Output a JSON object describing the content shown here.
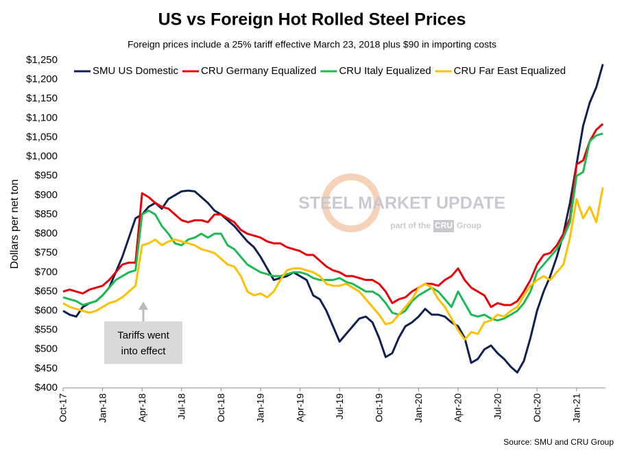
{
  "chart_data": {
    "type": "line",
    "title": "US vs Foreign Hot Rolled Steel Prices",
    "subtitle": "Foreign prices include a 25% tariff effective March 23, 2018 plus $90 in importing costs",
    "y_label": "Dollars per net ton",
    "source": "Source: SMU and CRU Group",
    "annotation": [
      "Tariffs went",
      "into effect"
    ],
    "watermark": [
      "STEEL MARKET UPDATE",
      "part of the",
      "CRU",
      "Group"
    ],
    "categories": [
      "Oct-17",
      null,
      null,
      null,
      null,
      null,
      "Jan-18",
      null,
      null,
      null,
      null,
      null,
      "Apr-18",
      null,
      null,
      null,
      null,
      null,
      "Jul-18",
      null,
      null,
      null,
      null,
      null,
      "Oct-18",
      null,
      null,
      null,
      null,
      null,
      "Jan-19",
      null,
      null,
      null,
      null,
      null,
      "Apr-19",
      null,
      null,
      null,
      null,
      null,
      "Jul-19",
      null,
      null,
      null,
      null,
      null,
      "Oct-19",
      null,
      null,
      null,
      null,
      null,
      "Jan-20",
      null,
      null,
      null,
      null,
      null,
      "Apr-20",
      null,
      null,
      null,
      null,
      null,
      "Jul-20",
      null,
      null,
      null,
      null,
      null,
      "Oct-20",
      null,
      null,
      null,
      null,
      null,
      "Jan-21",
      null,
      null,
      null,
      null
    ],
    "series": [
      {
        "name": "SMU US Domestic",
        "color": "#0f2150",
        "values": [
          600,
          590,
          585,
          610,
          620,
          625,
          640,
          660,
          700,
          740,
          790,
          840,
          850,
          870,
          880,
          865,
          890,
          900,
          910,
          912,
          910,
          895,
          880,
          860,
          850,
          835,
          820,
          800,
          780,
          765,
          740,
          710,
          680,
          685,
          690,
          700,
          690,
          680,
          640,
          630,
          600,
          560,
          520,
          540,
          560,
          580,
          585,
          570,
          530,
          480,
          490,
          530,
          560,
          570,
          585,
          605,
          590,
          590,
          585,
          570,
          560,
          530,
          465,
          475,
          500,
          510,
          490,
          475,
          455,
          440,
          470,
          530,
          600,
          650,
          690,
          740,
          800,
          880,
          980,
          1080,
          1140,
          1180,
          1240
        ]
      },
      {
        "name": "CRU Germany Equalized",
        "color": "#e8000b",
        "values": [
          650,
          655,
          650,
          645,
          655,
          660,
          665,
          680,
          700,
          720,
          725,
          725,
          905,
          895,
          880,
          870,
          865,
          850,
          835,
          830,
          835,
          835,
          830,
          850,
          850,
          840,
          830,
          810,
          800,
          795,
          790,
          780,
          775,
          775,
          765,
          760,
          755,
          745,
          745,
          730,
          715,
          705,
          700,
          690,
          690,
          685,
          680,
          680,
          670,
          650,
          620,
          630,
          635,
          650,
          660,
          670,
          670,
          665,
          680,
          690,
          710,
          680,
          660,
          650,
          640,
          610,
          620,
          615,
          615,
          625,
          650,
          680,
          720,
          745,
          750,
          770,
          800,
          840,
          980,
          990,
          1040,
          1070,
          1085
        ]
      },
      {
        "name": "CRU Italy Equalized",
        "color": "#1db954",
        "values": [
          635,
          630,
          625,
          615,
          620,
          625,
          640,
          660,
          680,
          690,
          700,
          705,
          850,
          860,
          850,
          820,
          800,
          775,
          770,
          785,
          790,
          800,
          790,
          800,
          800,
          770,
          760,
          740,
          720,
          710,
          700,
          695,
          690,
          690,
          695,
          700,
          700,
          695,
          685,
          680,
          680,
          680,
          685,
          675,
          670,
          660,
          650,
          650,
          640,
          620,
          595,
          590,
          600,
          625,
          640,
          650,
          660,
          650,
          630,
          610,
          650,
          620,
          590,
          585,
          590,
          580,
          575,
          580,
          590,
          600,
          620,
          650,
          700,
          720,
          740,
          760,
          790,
          830,
          950,
          960,
          1040,
          1055,
          1060
        ]
      },
      {
        "name": "CRU Far East Equalized",
        "color": "#ffc000",
        "values": [
          620,
          610,
          605,
          600,
          595,
          600,
          610,
          620,
          625,
          635,
          650,
          665,
          770,
          775,
          785,
          770,
          780,
          785,
          780,
          775,
          770,
          760,
          755,
          750,
          735,
          720,
          715,
          690,
          650,
          640,
          645,
          635,
          650,
          680,
          705,
          710,
          710,
          705,
          700,
          690,
          670,
          665,
          665,
          670,
          660,
          650,
          630,
          610,
          590,
          565,
          570,
          590,
          610,
          630,
          660,
          670,
          660,
          630,
          610,
          580,
          550,
          525,
          545,
          540,
          570,
          575,
          590,
          585,
          600,
          610,
          640,
          665,
          680,
          690,
          680,
          700,
          720,
          790,
          890,
          840,
          870,
          830,
          920
        ]
      }
    ],
    "ylim": [
      400,
      1250
    ],
    "yticks": [
      {
        "value": 400,
        "label": "$400"
      },
      {
        "value": 450,
        "label": "$450"
      },
      {
        "value": 500,
        "label": "$500"
      },
      {
        "value": 550,
        "label": "$550"
      },
      {
        "value": 600,
        "label": "$600"
      },
      {
        "value": 650,
        "label": "$650"
      },
      {
        "value": 700,
        "label": "$700"
      },
      {
        "value": 750,
        "label": "$750"
      },
      {
        "value": 800,
        "label": "$800"
      },
      {
        "value": 850,
        "label": "$850"
      },
      {
        "value": 900,
        "label": "$900"
      },
      {
        "value": 950,
        "label": "$950"
      },
      {
        "value": 1000,
        "label": "$1,000"
      },
      {
        "value": 1050,
        "label": "$1,050"
      },
      {
        "value": 1100,
        "label": "$1,100"
      },
      {
        "value": 1150,
        "label": "$1,150"
      },
      {
        "value": 1200,
        "label": "$1,200"
      },
      {
        "value": 1250,
        "label": "$1,250"
      }
    ],
    "grid": false,
    "legend": "top"
  }
}
